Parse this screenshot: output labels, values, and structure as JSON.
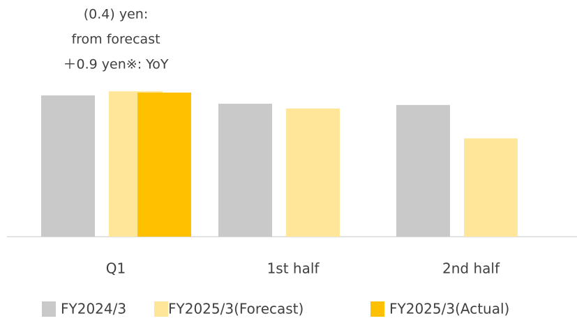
{
  "chart_data": {
    "type": "bar",
    "annotations": [
      "(0.4) yen:",
      "from forecast",
      "＋0.9 yen※: YoY"
    ],
    "categories": [
      "Q1",
      "1st half",
      "2nd half"
    ],
    "series": [
      {
        "name": "FY2024/3",
        "color": "#c9c9c9",
        "values": [
          44.4,
          41.8,
          41.4
        ]
      },
      {
        "name": "FY2025/3(Forecast)",
        "color": "#ffe699",
        "values": [
          45.7,
          40.3,
          30.9
        ]
      },
      {
        "name": "FY2025/3(Actual)",
        "color": "#ffc000",
        "values": [
          45.3,
          null,
          null
        ]
      }
    ],
    "ylim": [
      0,
      50
    ]
  }
}
